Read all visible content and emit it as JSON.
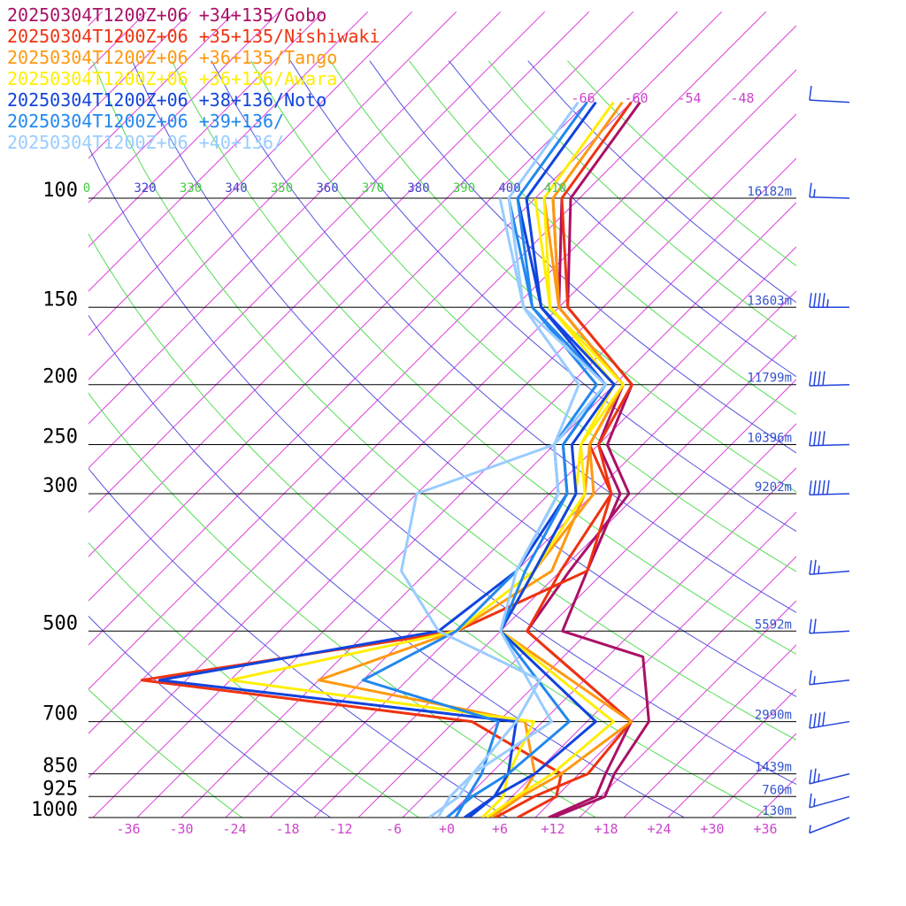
{
  "chart_data": {
    "type": "line",
    "title": "",
    "xlabel": "",
    "ylabel": "",
    "x_ticks": [
      "-36",
      "-30",
      "-24",
      "-18",
      "-12",
      "-6",
      "+0",
      "+6",
      "+12",
      "+18",
      "+24",
      "+30",
      "+36"
    ],
    "x_tick_values": [
      -36,
      -30,
      -24,
      -18,
      -12,
      -6,
      0,
      6,
      12,
      18,
      24,
      30,
      36
    ],
    "pressure_levels": [
      {
        "label": "100",
        "p": 100,
        "height": "16182m"
      },
      {
        "label": "150",
        "p": 150,
        "height": "13603m"
      },
      {
        "label": "200",
        "p": 200,
        "height": "11799m"
      },
      {
        "label": "250",
        "p": 250,
        "height": "10396m"
      },
      {
        "label": "300",
        "p": 300,
        "height": "9202m"
      },
      {
        "label": "500",
        "p": 500,
        "height": "5592m"
      },
      {
        "label": "700",
        "p": 700,
        "height": "2990m"
      },
      {
        "label": "850",
        "p": 850,
        "height": "1439m"
      },
      {
        "label": "925",
        "p": 925,
        "height": "760m"
      },
      {
        "label": "1000",
        "p": 1000,
        "height": "130m"
      }
    ],
    "isotherm_top_labels": [
      -66,
      -60,
      -54,
      -48
    ],
    "isotherm_top_texts": [
      "-66",
      "-60",
      "-54",
      "-48"
    ],
    "theta_labels": [
      "0",
      "320",
      "330",
      "340",
      "350",
      "360",
      "370",
      "380",
      "390",
      "400",
      "410"
    ],
    "theta_label_colors": [
      "#44cc44",
      "#4444cc",
      "#44cc44",
      "#4444cc",
      "#44cc44",
      "#4444cc",
      "#44cc44",
      "#4444cc",
      "#44cc44",
      "#4444cc",
      "#44cc44"
    ],
    "colors": {
      "isotherm": "#dd44dd",
      "adiabat_a": "#55dd55",
      "adiabat_b": "#5555dd",
      "isobar": "#000000",
      "height_label": "#3355cc",
      "tick_label": "#cc44cc"
    },
    "series": [
      {
        "name": "20250304T1200Z+06 +34+135/Gobo",
        "color": "#aa1166",
        "temperature": [
          [
            1000,
            11.5
          ],
          [
            925,
            14.5
          ],
          [
            850,
            13
          ],
          [
            700,
            10
          ],
          [
            500,
            -12
          ],
          [
            400,
            -14
          ],
          [
            300,
            -16
          ],
          [
            250,
            -24
          ],
          [
            200,
            -28
          ],
          [
            150,
            -44
          ],
          [
            100,
            -56
          ],
          [
            70,
            -59
          ]
        ],
        "dewpoint": [
          [
            1000,
            12
          ],
          [
            925,
            15.5
          ],
          [
            850,
            14
          ],
          [
            700,
            12
          ],
          [
            550,
            4
          ],
          [
            500,
            -8
          ],
          [
            400,
            -12
          ],
          [
            300,
            -17
          ],
          [
            250,
            -25
          ],
          [
            200,
            -29
          ],
          [
            150,
            -45
          ],
          [
            100,
            -57
          ]
        ]
      },
      {
        "name": "20250304T1200Z+06 +35+135/Nishiwaki",
        "color": "#ee3311",
        "temperature": [
          [
            1000,
            5.5
          ],
          [
            925,
            7.5
          ],
          [
            850,
            11
          ],
          [
            700,
            10
          ],
          [
            500,
            -12
          ],
          [
            400,
            -15
          ],
          [
            300,
            -18
          ],
          [
            250,
            -25
          ],
          [
            200,
            -28
          ],
          [
            150,
            -44
          ],
          [
            100,
            -57
          ],
          [
            70,
            -60
          ]
        ],
        "dewpoint": [
          [
            1000,
            8
          ],
          [
            925,
            10
          ],
          [
            850,
            8
          ],
          [
            700,
            -8
          ],
          [
            600,
            -50
          ],
          [
            500,
            -20
          ],
          [
            400,
            -12
          ],
          [
            300,
            -18
          ],
          [
            250,
            -26
          ],
          [
            200,
            -29
          ],
          [
            150,
            -45
          ],
          [
            100,
            -58
          ]
        ]
      },
      {
        "name": "20250304T1200Z+06 +36+135/Tango",
        "color": "#ff9911",
        "temperature": [
          [
            1000,
            5
          ],
          [
            925,
            6
          ],
          [
            850,
            8
          ],
          [
            700,
            10
          ],
          [
            500,
            -15
          ],
          [
            400,
            -18
          ],
          [
            300,
            -20
          ],
          [
            250,
            -26
          ],
          [
            200,
            -29
          ],
          [
            150,
            -45
          ],
          [
            100,
            -58
          ],
          [
            70,
            -61
          ]
        ],
        "dewpoint": [
          [
            1000,
            5
          ],
          [
            925,
            6
          ],
          [
            850,
            5
          ],
          [
            700,
            -2
          ],
          [
            600,
            -30
          ],
          [
            500,
            -20
          ],
          [
            400,
            -16
          ],
          [
            300,
            -21
          ],
          [
            250,
            -26
          ],
          [
            200,
            -29
          ],
          [
            150,
            -45
          ],
          [
            100,
            -59
          ]
        ]
      },
      {
        "name": "20250304T1200Z+06 +36+136/Awara",
        "color": "#ffee00",
        "temperature": [
          [
            1000,
            4.5
          ],
          [
            925,
            5.5
          ],
          [
            850,
            7
          ],
          [
            700,
            8
          ],
          [
            500,
            -15
          ],
          [
            400,
            -18
          ],
          [
            300,
            -21
          ],
          [
            250,
            -27
          ],
          [
            200,
            -29
          ],
          [
            150,
            -46
          ],
          [
            100,
            -59
          ],
          [
            70,
            -62
          ]
        ],
        "dewpoint": [
          [
            1000,
            4
          ],
          [
            925,
            4
          ],
          [
            850,
            2
          ],
          [
            700,
            -1
          ],
          [
            600,
            -40
          ],
          [
            500,
            -20
          ],
          [
            400,
            -18
          ],
          [
            300,
            -22
          ],
          [
            250,
            -27
          ],
          [
            200,
            -30
          ],
          [
            150,
            -46
          ],
          [
            100,
            -60
          ]
        ]
      },
      {
        "name": "20250304T1200Z+06 +38+136/Noto",
        "color": "#1144dd",
        "temperature": [
          [
            1000,
            2
          ],
          [
            925,
            3
          ],
          [
            850,
            5
          ],
          [
            700,
            6
          ],
          [
            500,
            -15
          ],
          [
            400,
            -18
          ],
          [
            300,
            -22
          ],
          [
            250,
            -28
          ],
          [
            200,
            -30
          ],
          [
            150,
            -47
          ],
          [
            100,
            -61
          ],
          [
            70,
            -64
          ]
        ],
        "dewpoint": [
          [
            1000,
            2.5
          ],
          [
            925,
            3
          ],
          [
            850,
            2
          ],
          [
            700,
            -3
          ],
          [
            600,
            -48
          ],
          [
            500,
            -22
          ],
          [
            400,
            -20
          ],
          [
            300,
            -23
          ],
          [
            250,
            -29
          ],
          [
            200,
            -31
          ],
          [
            150,
            -47
          ],
          [
            100,
            -62
          ]
        ]
      },
      {
        "name": "20250304T1200Z+06 +39+136/",
        "color": "#2288ee",
        "temperature": [
          [
            1000,
            0
          ],
          [
            925,
            0.5
          ],
          [
            850,
            2
          ],
          [
            700,
            3
          ],
          [
            500,
            -15
          ],
          [
            400,
            -19
          ],
          [
            300,
            -23
          ],
          [
            250,
            -29
          ],
          [
            200,
            -31
          ],
          [
            150,
            -48
          ],
          [
            100,
            -62
          ],
          [
            70,
            -65
          ]
        ],
        "dewpoint": [
          [
            1000,
            1
          ],
          [
            925,
            0
          ],
          [
            850,
            -1
          ],
          [
            700,
            -5
          ],
          [
            600,
            -25
          ],
          [
            500,
            -20
          ],
          [
            400,
            -20
          ],
          [
            300,
            -24
          ],
          [
            250,
            -30
          ],
          [
            200,
            -32
          ],
          [
            150,
            -48
          ],
          [
            100,
            -63
          ]
        ]
      },
      {
        "name": "20250304T1200Z+06 +40+136/",
        "color": "#99ccff",
        "temperature": [
          [
            1000,
            -1
          ],
          [
            925,
            -2
          ],
          [
            850,
            -2
          ],
          [
            700,
            1
          ],
          [
            500,
            -15
          ],
          [
            400,
            -20
          ],
          [
            300,
            -24
          ],
          [
            250,
            -30
          ],
          [
            200,
            -31
          ],
          [
            150,
            -49
          ],
          [
            100,
            -63
          ],
          [
            70,
            -66
          ]
        ],
        "dewpoint": [
          [
            1000,
            -2
          ],
          [
            925,
            -1
          ],
          [
            850,
            -2
          ],
          [
            700,
            -3
          ],
          [
            600,
            -5
          ],
          [
            500,
            -22
          ],
          [
            400,
            -33
          ],
          [
            300,
            -40
          ],
          [
            250,
            -30
          ],
          [
            200,
            -34
          ],
          [
            150,
            -49
          ],
          [
            100,
            -64
          ]
        ]
      }
    ],
    "wind_barbs": [
      {
        "p": 70,
        "speed": 10,
        "dir": 280
      },
      {
        "p": 100,
        "speed": 15,
        "dir": 275
      },
      {
        "p": 150,
        "speed": 45,
        "dir": 270
      },
      {
        "p": 200,
        "speed": 40,
        "dir": 265
      },
      {
        "p": 250,
        "speed": 40,
        "dir": 265
      },
      {
        "p": 300,
        "speed": 50,
        "dir": 265
      },
      {
        "p": 400,
        "speed": 25,
        "dir": 255
      },
      {
        "p": 500,
        "speed": 20,
        "dir": 260
      },
      {
        "p": 600,
        "speed": 15,
        "dir": 250
      },
      {
        "p": 700,
        "speed": 40,
        "dir": 240
      },
      {
        "p": 850,
        "speed": 25,
        "dir": 225
      },
      {
        "p": 925,
        "speed": 15,
        "dir": 220
      },
      {
        "p": 1000,
        "speed": 5,
        "dir": 200
      }
    ]
  }
}
